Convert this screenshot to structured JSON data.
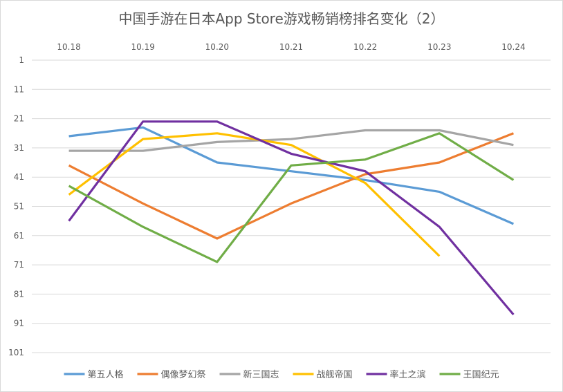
{
  "chart_data": {
    "type": "line",
    "title": "中国手游在日本App Store游戏畅销榜排名变化（2）",
    "categories": [
      "10.18",
      "10.19",
      "10.20",
      "10.21",
      "10.22",
      "10.23",
      "10.24"
    ],
    "y_ticks": [
      "1",
      "11",
      "21",
      "31",
      "41",
      "51",
      "61",
      "71",
      "81",
      "91",
      "101"
    ],
    "ylim": [
      1,
      101
    ],
    "y_reversed": true,
    "x_axis_position": "top",
    "grid": true,
    "legend_position": "bottom",
    "series": [
      {
        "name": "第五人格",
        "color": "#5b9bd5",
        "values": [
          27,
          24,
          36,
          39,
          42,
          46,
          57
        ]
      },
      {
        "name": "偶像梦幻祭",
        "color": "#ed7d31",
        "values": [
          37,
          50,
          62,
          50,
          40,
          36,
          26
        ]
      },
      {
        "name": "新三国志",
        "color": "#a5a5a5",
        "values": [
          32,
          32,
          29,
          28,
          25,
          25,
          30
        ]
      },
      {
        "name": "战舰帝国",
        "color": "#ffc000",
        "values": [
          47,
          28,
          26,
          30,
          43,
          68,
          null
        ]
      },
      {
        "name": "率土之滨",
        "color": "#7030a0",
        "values": [
          56,
          22,
          22,
          33,
          39,
          58,
          88
        ]
      },
      {
        "name": "王国纪元",
        "color": "#70ad47",
        "values": [
          44,
          58,
          70,
          37,
          35,
          26,
          42
        ]
      }
    ]
  }
}
